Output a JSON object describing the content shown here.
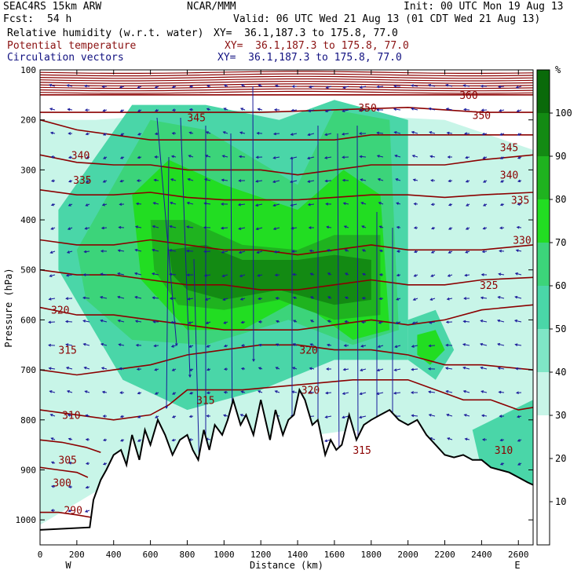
{
  "header": {
    "model": "SEAC4RS 15km ARW",
    "org": "NCAR/MMM",
    "init": "Init: 00 UTC Mon 19 Aug 13",
    "fcst_label": "Fcst:",
    "fcst_value": "54 h",
    "valid": "Valid: 06 UTC Wed 21 Aug 13 (01 CDT Wed 21 Aug 13)",
    "field1": "Relative humidity (w.r.t. water)",
    "field2": "Potential temperature",
    "field3": "Circulation vectors",
    "xy1": "XY=  36.1,187.3 to 175.8, 77.0",
    "xy2": "XY=  36.1,187.3 to 175.8, 77.0",
    "xy3": "XY=  36.1,187.3 to 175.8, 77.0"
  },
  "colors": {
    "rh_30": "#c8f5e8",
    "rh_40": "#7fe6c6",
    "rh_50": "#4ad6a8",
    "rh_60": "#3cd47a",
    "rh_70": "#22dd22",
    "rh_80": "#1fb31f",
    "rh_90": "#138a13",
    "rh_100": "#0a6a0a",
    "theta": "#8b0000",
    "vectors": "#1a1a9a",
    "terrain": "#000000"
  },
  "chart_data": {
    "type": "heatmap",
    "xlabel": "Distance (km)",
    "ylabel": "Pressure (hPa)",
    "xlim": [
      0,
      2680
    ],
    "ylim": [
      1050,
      100
    ],
    "x_ticks": [
      0,
      200,
      400,
      600,
      800,
      1000,
      1200,
      1400,
      1600,
      1800,
      2000,
      2200,
      2400,
      2600
    ],
    "y_ticks": [
      100,
      200,
      300,
      400,
      500,
      600,
      700,
      800,
      900,
      1000
    ],
    "left_end_label": "W",
    "right_end_label": "E",
    "colorbar": {
      "unit": "%",
      "ticks": [
        10,
        20,
        30,
        40,
        50,
        60,
        70,
        80,
        90,
        100
      ],
      "levels": [
        30,
        40,
        50,
        60,
        70,
        80,
        90,
        100
      ]
    },
    "terrain": {
      "x": [
        0,
        270,
        290,
        330,
        360,
        400,
        440,
        470,
        500,
        540,
        570,
        600,
        640,
        680,
        720,
        760,
        800,
        830,
        860,
        890,
        920,
        950,
        990,
        1020,
        1050,
        1090,
        1120,
        1160,
        1200,
        1250,
        1280,
        1320,
        1350,
        1380,
        1410,
        1440,
        1480,
        1510,
        1550,
        1580,
        1610,
        1640,
        1680,
        1720,
        1760,
        1800,
        1850,
        1900,
        1950,
        2000,
        2050,
        2100,
        2150,
        2200,
        2250,
        2300,
        2350,
        2400,
        2450,
        2500,
        2550,
        2600,
        2650,
        2680
      ],
      "p": [
        1020,
        1015,
        960,
        920,
        900,
        870,
        860,
        890,
        830,
        880,
        820,
        850,
        800,
        830,
        870,
        840,
        830,
        860,
        880,
        820,
        860,
        810,
        830,
        800,
        760,
        810,
        790,
        830,
        760,
        840,
        780,
        830,
        800,
        790,
        740,
        760,
        810,
        800,
        870,
        840,
        860,
        850,
        790,
        840,
        810,
        800,
        790,
        780,
        800,
        810,
        800,
        830,
        850,
        870,
        875,
        870,
        880,
        880,
        895,
        900,
        905,
        915,
        925,
        930
      ]
    },
    "theta_isentropes": [
      {
        "label": "290",
        "x": [
          0,
          100,
          200,
          280
        ],
        "p": [
          985,
          985,
          990,
          995
        ]
      },
      {
        "label": "300",
        "x": [
          0,
          100,
          200,
          260
        ],
        "p": [
          895,
          900,
          905,
          915
        ]
      },
      {
        "label": "305",
        "x": [
          0,
          120,
          250,
          330
        ],
        "p": [
          840,
          845,
          855,
          865
        ]
      },
      {
        "label": "310",
        "x": [
          0,
          200,
          400,
          600,
          700,
          800,
          1100,
          1400,
          1700,
          2000,
          2300,
          2450,
          2600,
          2680
        ],
        "p": [
          780,
          790,
          800,
          790,
          770,
          740,
          740,
          730,
          720,
          720,
          760,
          760,
          780,
          775
        ]
      },
      {
        "label": "315",
        "x": [
          0,
          200,
          400,
          600,
          800,
          1000,
          1200,
          1400,
          1600,
          1800,
          2000,
          2200,
          2400,
          2680
        ],
        "p": [
          700,
          710,
          700,
          690,
          670,
          660,
          650,
          650,
          660,
          660,
          670,
          690,
          690,
          700
        ]
      },
      {
        "label": "320",
        "x": [
          0,
          200,
          400,
          600,
          800,
          1000,
          1200,
          1400,
          1600,
          1800,
          2000,
          2200,
          2400,
          2680
        ],
        "p": [
          575,
          590,
          590,
          600,
          610,
          620,
          620,
          620,
          610,
          600,
          610,
          600,
          580,
          570
        ]
      },
      {
        "label": "325",
        "x": [
          0,
          200,
          400,
          600,
          800,
          1000,
          1200,
          1400,
          1600,
          1800,
          2000,
          2200,
          2400,
          2680
        ],
        "p": [
          500,
          510,
          510,
          520,
          530,
          530,
          540,
          540,
          530,
          520,
          530,
          530,
          520,
          515
        ]
      },
      {
        "label": "330",
        "x": [
          0,
          200,
          400,
          600,
          800,
          1000,
          1200,
          1400,
          1600,
          1800,
          2000,
          2200,
          2400,
          2680
        ],
        "p": [
          440,
          450,
          450,
          440,
          450,
          460,
          460,
          470,
          460,
          450,
          460,
          460,
          460,
          450
        ]
      },
      {
        "label": "335",
        "x": [
          0,
          200,
          400,
          600,
          800,
          1000,
          1200,
          1400,
          1600,
          1800,
          2000,
          2200,
          2400,
          2680
        ],
        "p": [
          340,
          350,
          350,
          345,
          355,
          360,
          360,
          360,
          355,
          350,
          350,
          355,
          350,
          345
        ]
      },
      {
        "label": "340",
        "x": [
          0,
          200,
          400,
          600,
          800,
          1000,
          1200,
          1400,
          1600,
          1800,
          2000,
          2200,
          2400,
          2680
        ],
        "p": [
          270,
          285,
          290,
          290,
          300,
          300,
          300,
          310,
          300,
          290,
          290,
          290,
          280,
          270
        ]
      },
      {
        "label": "345",
        "x": [
          0,
          200,
          400,
          600,
          800,
          1000,
          1200,
          1400,
          1600,
          1800,
          2000,
          2200,
          2400,
          2680
        ],
        "p": [
          200,
          220,
          230,
          240,
          240,
          240,
          240,
          240,
          240,
          230,
          230,
          230,
          230,
          230
        ]
      },
      {
        "label": "350",
        "x": [
          0,
          400,
          800,
          1200,
          1600,
          2000,
          2400,
          2680
        ],
        "p": [
          185,
          185,
          185,
          185,
          180,
          175,
          185,
          185
        ]
      },
      {
        "label": "360",
        "x": [
          0,
          400,
          800,
          1200,
          1600,
          2000,
          2400,
          2680
        ],
        "p": [
          150,
          150,
          150,
          150,
          150,
          150,
          150,
          150
        ]
      }
    ],
    "theta_labels": [
      {
        "text": "360",
        "x": 2330,
        "p": 150
      },
      {
        "text": "350",
        "x": 1780,
        "p": 175
      },
      {
        "text": "350",
        "x": 2400,
        "p": 190
      },
      {
        "text": "345",
        "x": 850,
        "p": 195
      },
      {
        "text": "345",
        "x": 2550,
        "p": 255
      },
      {
        "text": "340",
        "x": 220,
        "p": 270
      },
      {
        "text": "340",
        "x": 2550,
        "p": 310
      },
      {
        "text": "335",
        "x": 230,
        "p": 320
      },
      {
        "text": "335",
        "x": 2610,
        "p": 360
      },
      {
        "text": "330",
        "x": 2620,
        "p": 440
      },
      {
        "text": "325",
        "x": 2440,
        "p": 530
      },
      {
        "text": "320",
        "x": 110,
        "p": 580
      },
      {
        "text": "320",
        "x": 1460,
        "p": 660
      },
      {
        "text": "320",
        "x": 1470,
        "p": 740
      },
      {
        "text": "315",
        "x": 150,
        "p": 660
      },
      {
        "text": "315",
        "x": 900,
        "p": 760
      },
      {
        "text": "315",
        "x": 1750,
        "p": 860
      },
      {
        "text": "310",
        "x": 170,
        "p": 790
      },
      {
        "text": "310",
        "x": 2520,
        "p": 860
      },
      {
        "text": "305",
        "x": 150,
        "p": 880
      },
      {
        "text": "300",
        "x": 120,
        "p": 925
      },
      {
        "text": "290",
        "x": 180,
        "p": 980
      }
    ],
    "rh_regions": [
      {
        "level": 30,
        "x": [
          0,
          300,
          1100,
          2200,
          2680,
          2680,
          2200,
          1700,
          1100,
          500,
          0
        ],
        "p": [
          200,
          200,
          180,
          200,
          260,
          950,
          880,
          820,
          850,
          900,
          1010
        ]
      },
      {
        "level": 50,
        "x": [
          100,
          500,
          900,
          1300,
          1600,
          2000,
          2000,
          1600,
          1200,
          800,
          450,
          100
        ],
        "p": [
          380,
          170,
          170,
          200,
          160,
          200,
          680,
          680,
          740,
          780,
          720,
          500
        ]
      },
      {
        "level": 60,
        "x": [
          200,
          600,
          900,
          1400,
          1600,
          1900,
          1950,
          1700,
          1350,
          900,
          500,
          250
        ],
        "p": [
          460,
          200,
          220,
          330,
          180,
          200,
          620,
          650,
          600,
          650,
          640,
          560
        ]
      },
      {
        "level": 70,
        "x": [
          500,
          700,
          1000,
          1400,
          1650,
          1850,
          1900,
          1700,
          1400,
          1100,
          800,
          550
        ],
        "p": [
          350,
          280,
          330,
          380,
          300,
          350,
          620,
          640,
          560,
          620,
          620,
          520
        ]
      },
      {
        "level": 80,
        "x": [
          600,
          800,
          1100,
          1400,
          1600,
          1850,
          1850,
          1600,
          1300,
          1000,
          750,
          620
        ],
        "p": [
          400,
          400,
          450,
          460,
          430,
          430,
          590,
          600,
          560,
          580,
          570,
          500
        ]
      },
      {
        "level": 90,
        "x": [
          700,
          900,
          1100,
          1400,
          1600,
          1800,
          1800,
          1600,
          1300,
          1000,
          800,
          720
        ],
        "p": [
          460,
          450,
          480,
          480,
          470,
          480,
          560,
          570,
          540,
          560,
          540,
          510
        ]
      },
      {
        "level": 50,
        "x": [
          2000,
          2150,
          2250,
          2150,
          2000
        ],
        "p": [
          600,
          580,
          660,
          720,
          680
        ]
      },
      {
        "level": 70,
        "x": [
          2050,
          2150,
          2200,
          2120,
          2050
        ],
        "p": [
          630,
          620,
          660,
          690,
          670
        ]
      },
      {
        "level": 50,
        "x": [
          2350,
          2680,
          2680,
          2400
        ],
        "p": [
          820,
          760,
          940,
          900
        ]
      }
    ]
  }
}
